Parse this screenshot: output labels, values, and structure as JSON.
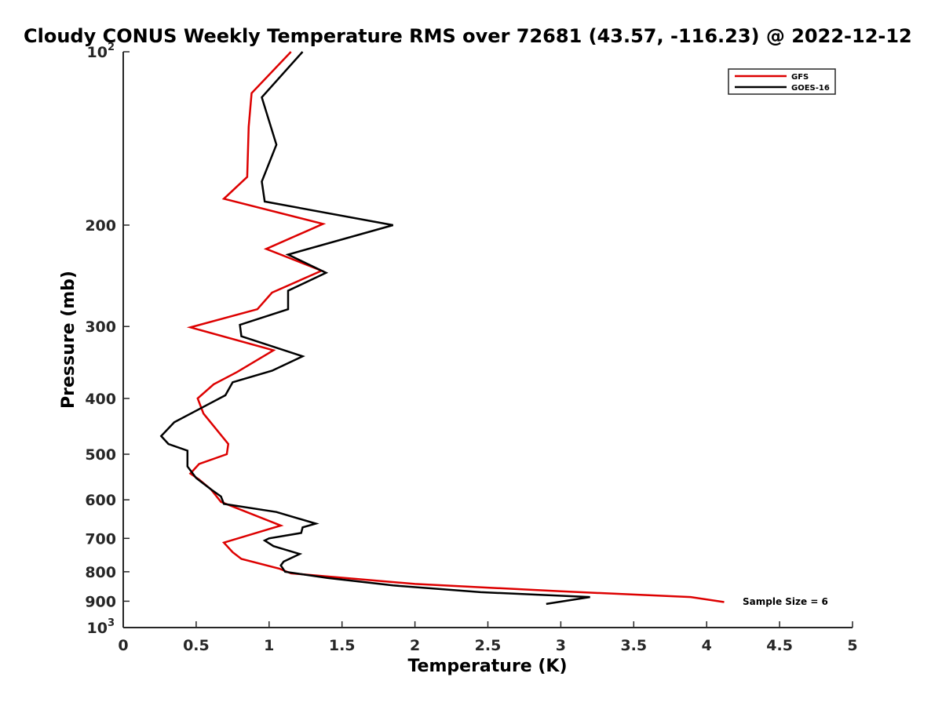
{
  "chart_data": {
    "type": "line",
    "title": "Cloudy CONUS Weekly Temperature RMS over 72681 (43.57, -116.23) @ 2022-12-12",
    "xlabel": "Temperature (K)",
    "ylabel": "Pressure (mb)",
    "xlim": [
      0,
      5
    ],
    "ylim": [
      100,
      1000
    ],
    "yscale": "log",
    "y_reversed": true,
    "x_ticks": [
      "0",
      "0.5",
      "1",
      "1.5",
      "2",
      "2.5",
      "3",
      "3.5",
      "4",
      "4.5",
      "5"
    ],
    "y_ticks": [
      {
        "value": 100,
        "base": "10",
        "exp": "2"
      },
      {
        "value": 200,
        "label": "200"
      },
      {
        "value": 300,
        "label": "300"
      },
      {
        "value": 400,
        "label": "400"
      },
      {
        "value": 500,
        "label": "500"
      },
      {
        "value": 600,
        "label": "600"
      },
      {
        "value": 700,
        "label": "700"
      },
      {
        "value": 800,
        "label": "800"
      },
      {
        "value": 900,
        "label": "900"
      },
      {
        "value": 1000,
        "base": "10",
        "exp": "3"
      }
    ],
    "grid": false,
    "legend_position": "top-right",
    "annotation": "Sample Size = 6",
    "series": [
      {
        "name": "GFS",
        "color": "#dd0000",
        "points": [
          [
            1.15,
            100
          ],
          [
            0.88,
            118
          ],
          [
            0.86,
            135
          ],
          [
            0.85,
            165
          ],
          [
            0.69,
            180
          ],
          [
            1.37,
            199
          ],
          [
            0.98,
            220
          ],
          [
            1.36,
            240
          ],
          [
            1.02,
            262
          ],
          [
            0.92,
            280
          ],
          [
            0.46,
            301
          ],
          [
            1.03,
            330
          ],
          [
            0.78,
            360
          ],
          [
            0.62,
            378
          ],
          [
            0.51,
            400
          ],
          [
            0.55,
            425
          ],
          [
            0.72,
            480
          ],
          [
            0.71,
            500
          ],
          [
            0.52,
            520
          ],
          [
            0.46,
            540
          ],
          [
            0.52,
            553
          ],
          [
            0.6,
            575
          ],
          [
            0.67,
            605
          ],
          [
            1.08,
            665
          ],
          [
            0.69,
            712
          ],
          [
            0.75,
            740
          ],
          [
            0.81,
            760
          ],
          [
            1.07,
            790
          ],
          [
            1.15,
            805
          ],
          [
            2.0,
            840
          ],
          [
            3.0,
            865
          ],
          [
            3.89,
            885
          ],
          [
            4.12,
            903
          ]
        ]
      },
      {
        "name": "GOES-16",
        "color": "#000000",
        "points": [
          [
            1.23,
            100
          ],
          [
            0.95,
            120
          ],
          [
            1.05,
            145
          ],
          [
            0.95,
            168
          ],
          [
            0.97,
            182
          ],
          [
            1.85,
            200
          ],
          [
            1.13,
            225
          ],
          [
            1.39,
            242
          ],
          [
            1.13,
            260
          ],
          [
            1.13,
            280
          ],
          [
            0.8,
            298
          ],
          [
            0.81,
            312
          ],
          [
            1.23,
            338
          ],
          [
            1.02,
            358
          ],
          [
            0.75,
            375
          ],
          [
            0.7,
            395
          ],
          [
            0.35,
            440
          ],
          [
            0.26,
            465
          ],
          [
            0.31,
            480
          ],
          [
            0.44,
            493
          ],
          [
            0.44,
            525
          ],
          [
            0.5,
            550
          ],
          [
            0.6,
            575
          ],
          [
            0.67,
            592
          ],
          [
            0.69,
            610
          ],
          [
            1.05,
            630
          ],
          [
            1.32,
            660
          ],
          [
            1.23,
            670
          ],
          [
            1.22,
            685
          ],
          [
            1.0,
            700
          ],
          [
            0.97,
            706
          ],
          [
            1.03,
            722
          ],
          [
            1.21,
            745
          ],
          [
            1.1,
            768
          ],
          [
            1.08,
            780
          ],
          [
            1.11,
            800
          ],
          [
            1.4,
            820
          ],
          [
            1.85,
            845
          ],
          [
            2.45,
            868
          ],
          [
            3.2,
            885
          ],
          [
            2.9,
            910
          ]
        ]
      }
    ]
  }
}
